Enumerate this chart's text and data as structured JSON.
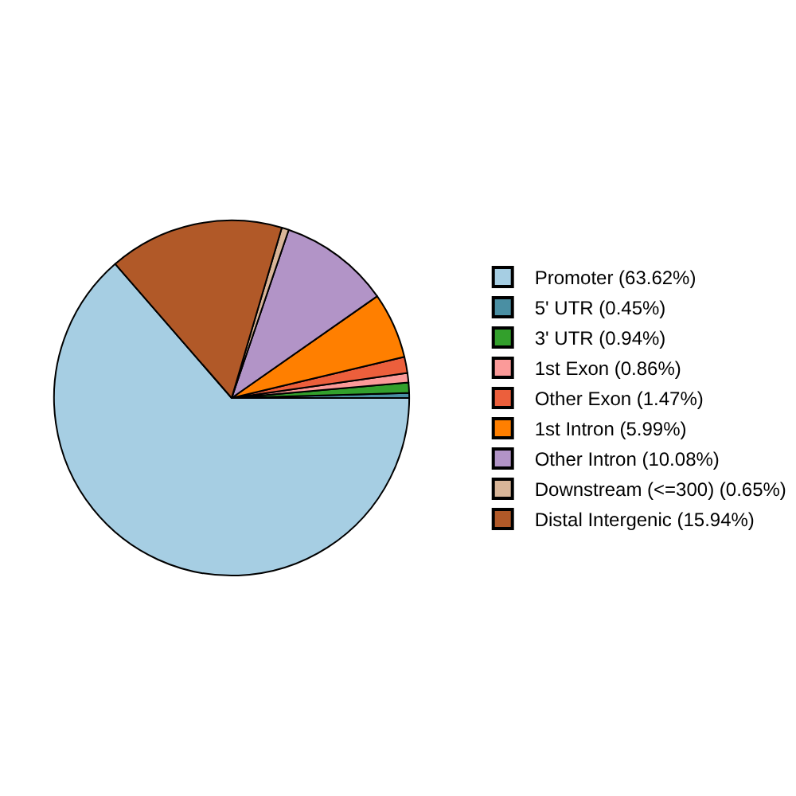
{
  "chart_data": {
    "type": "pie",
    "categories": [
      "Promoter (63.62%)",
      "5' UTR (0.45%)",
      "3' UTR (0.94%)",
      "1st Exon (0.86%)",
      "Other Exon (1.47%)",
      "1st Intron (5.99%)",
      "Other Intron (10.08%)",
      "Downstream (<=300) (0.65%)",
      "Distal Intergenic (15.94%)"
    ],
    "values": [
      63.62,
      0.45,
      0.94,
      0.86,
      1.47,
      5.99,
      10.08,
      0.65,
      15.94
    ],
    "colors": [
      "#a6cee3",
      "#4a8fa3",
      "#33a02c",
      "#fb9a99",
      "#ec5f3c",
      "#ff7f00",
      "#b294c7",
      "#d8b598",
      "#b15928"
    ],
    "legend": "right"
  }
}
